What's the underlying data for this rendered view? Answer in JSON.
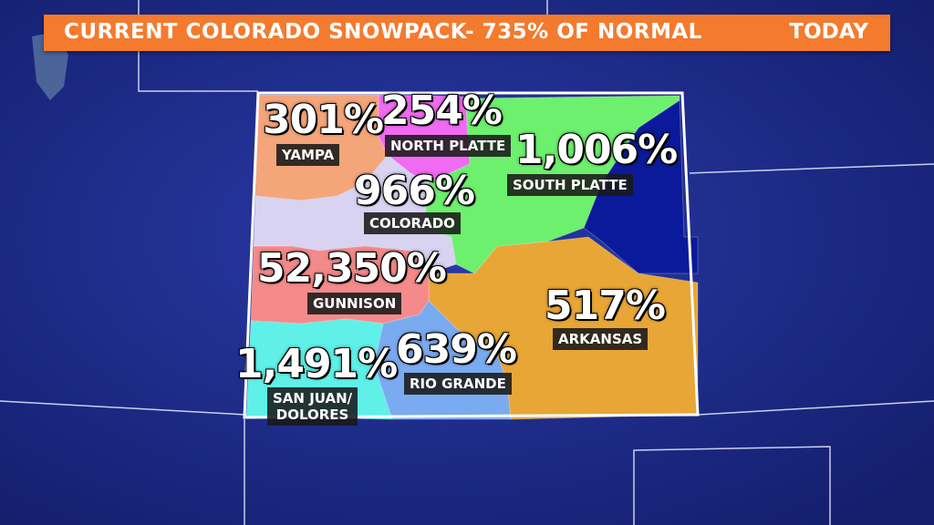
{
  "banner": {
    "title": "CURRENT COLORADO SNOWPACK- 735% OF NORMAL",
    "timeframe": "TODAY",
    "color": "#f47a2e"
  },
  "map": {
    "background": "#1c2a8a",
    "border_color": "#ffffff"
  },
  "basins": [
    {
      "id": "yampa",
      "percent": "301%",
      "name": "YAMPA",
      "color": "#f5a57a"
    },
    {
      "id": "north-platte",
      "percent": "254%",
      "name": "NORTH PLATTE",
      "color": "#f06af2"
    },
    {
      "id": "south-platte",
      "percent": "1,006%",
      "name": "SOUTH PLATTE",
      "color": "#6df06d"
    },
    {
      "id": "colorado",
      "percent": "966%",
      "name": "COLORADO",
      "color": "#d7d3f0"
    },
    {
      "id": "gunnison",
      "percent": "52,350%",
      "name": "GUNNISON",
      "color": "#f48a8a"
    },
    {
      "id": "arkansas",
      "percent": "517%",
      "name": "ARKANSAS",
      "color": "#e8a636"
    },
    {
      "id": "rio-grande",
      "percent": "639%",
      "name": "RIO GRANDE",
      "color": "#7aaaf0"
    },
    {
      "id": "san-juan",
      "percent": "1,491%",
      "name": "SAN JUAN/\nDOLORES",
      "color": "#5ff0e8"
    },
    {
      "id": "unreported",
      "percent": "",
      "name": "",
      "color": "#0a1a9a"
    }
  ]
}
